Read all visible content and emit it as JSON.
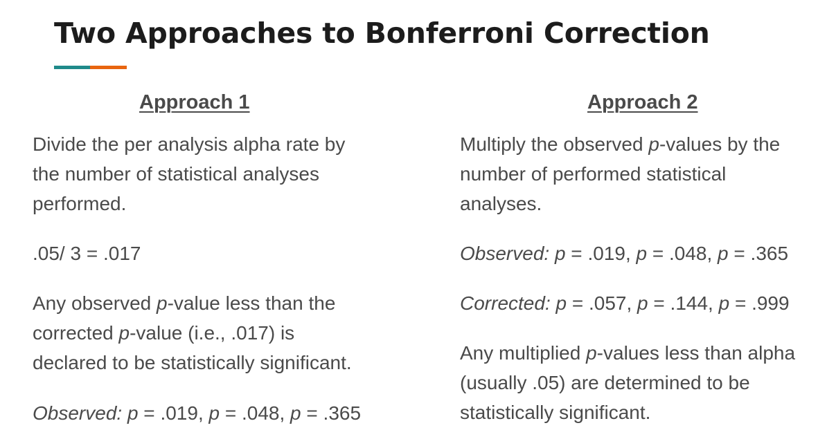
{
  "title": "Two Approaches to Bonferroni Correction",
  "colors": {
    "accent_teal": "#1f8a8a",
    "accent_orange": "#e8650f"
  },
  "approach1": {
    "heading": "Approach 1",
    "step1": {
      "line1": "Divide the per analysis alpha rate by",
      "line2": "the number of statistical analyses",
      "line3": "performed."
    },
    "calculation": ".05/ 3 = .017",
    "rule": {
      "l1_before": "Any observed ",
      "p": "p",
      "l1_after": "-value less than the",
      "l2_before": "corrected ",
      "l2_after": "-value (i.e., .017) is",
      "line3": "declared to be statistically significant."
    },
    "observed": {
      "label": "Observed:",
      "p": "p",
      "v1": " = .019, ",
      "v2": " = .048, ",
      "v3": " = .365"
    }
  },
  "approach2": {
    "heading": "Approach 2",
    "step1": {
      "l1_before": "Multiply the observed ",
      "p": "p",
      "l1_after": "-values by the",
      "line2": "number of performed statistical",
      "line3": "analyses."
    },
    "observed": {
      "label": "Observed:",
      "p": "p",
      "v1": " = .019, ",
      "v2": " = .048, ",
      "v3": " = .365"
    },
    "corrected": {
      "label": "Corrected:",
      "p": "p",
      "v1": " = .057, ",
      "v2": " = .144, ",
      "v3": " = .999"
    },
    "rule": {
      "l1_before": "Any multiplied ",
      "p": "p",
      "l1_after": "-values less than alpha",
      "line2": "(usually .05) are determined to be",
      "line3": "statistically significant."
    }
  }
}
